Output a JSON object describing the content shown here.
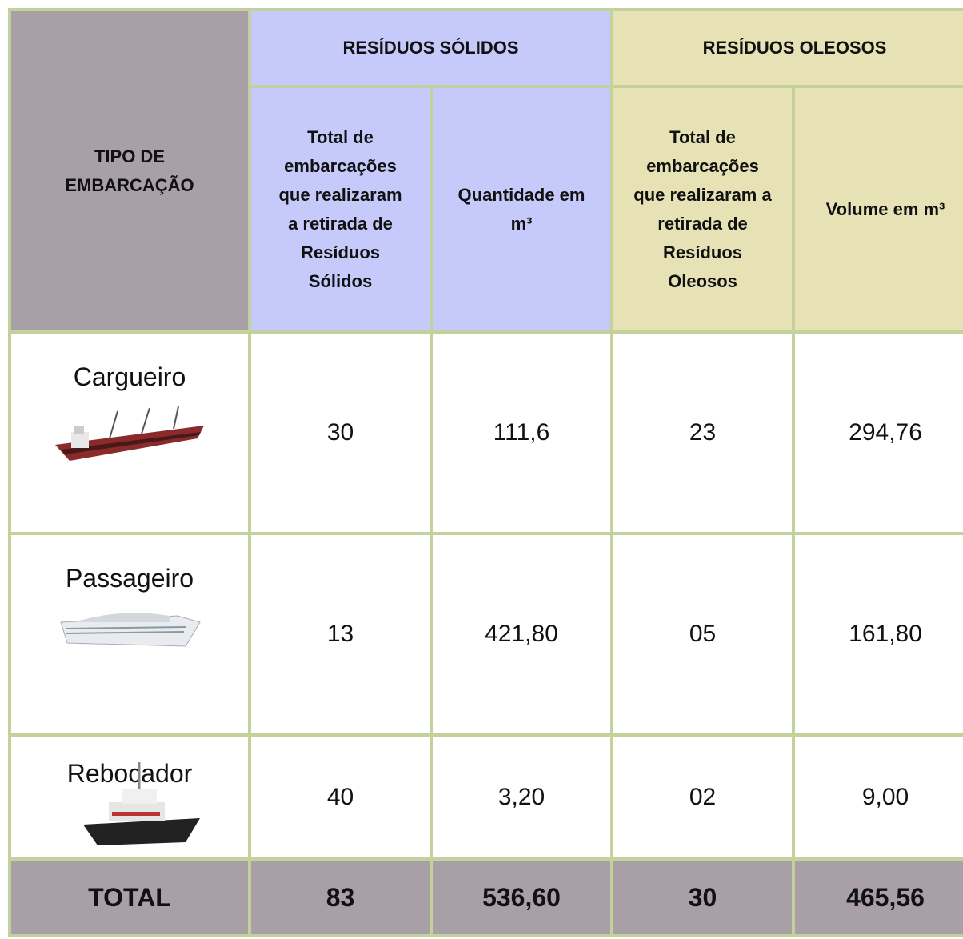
{
  "table": {
    "header": {
      "type": "TIPO DE EMBARCAÇÃO",
      "groups": [
        "RESÍDUOS SÓLIDOS",
        "RESÍDUOS OLEOSOS"
      ],
      "columns": [
        "Total de embarcações que realizaram a retirada de Resíduos Sólidos",
        "Quantidade em m³",
        "Total de embarcações que realizaram a retirada de Resíduos Oleosos",
        "Volume em m³"
      ]
    },
    "rows": [
      [
        "Cargueiro",
        "30",
        "111,6",
        "23",
        "294,76"
      ],
      [
        "Passageiro",
        "13",
        "421,80",
        "05",
        "161,80"
      ],
      [
        "Rebocador",
        "40",
        "3,20",
        "02",
        "9,00"
      ]
    ],
    "total": [
      "TOTAL",
      "83",
      "536,60",
      "30",
      "465,56"
    ]
  }
}
